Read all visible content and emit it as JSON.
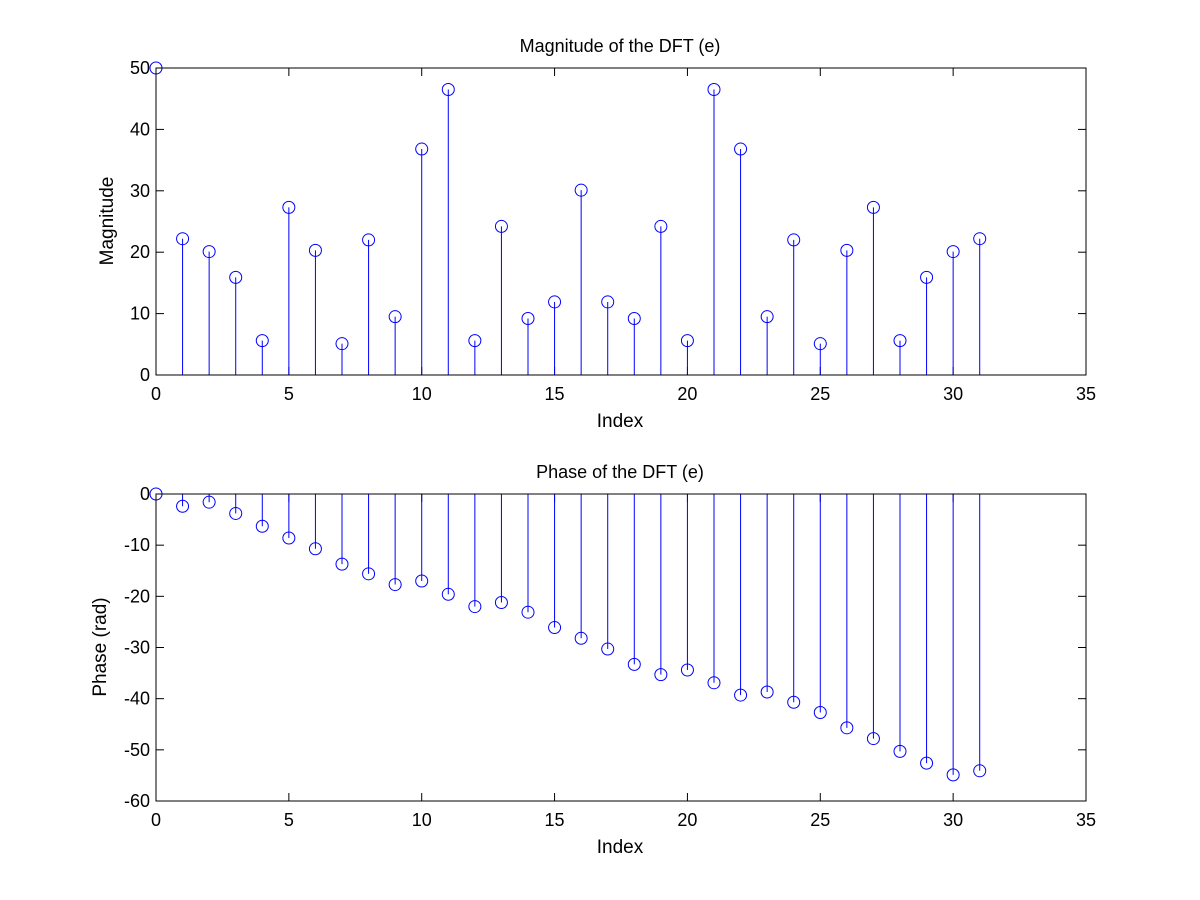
{
  "chart_data": [
    {
      "type": "stem",
      "title": "Magnitude of the DFT (e)",
      "xlabel": "Index",
      "ylabel": "Magnitude",
      "xlim": [
        0,
        35
      ],
      "ylim": [
        0,
        50
      ],
      "xticks": [
        0,
        5,
        10,
        15,
        20,
        25,
        30,
        35
      ],
      "yticks": [
        0,
        10,
        20,
        30,
        40,
        50
      ],
      "grid": false,
      "color": "#0000ff",
      "x": [
        0,
        1,
        2,
        3,
        4,
        5,
        6,
        7,
        8,
        9,
        10,
        11,
        12,
        13,
        14,
        15,
        16,
        17,
        18,
        19,
        20,
        21,
        22,
        23,
        24,
        25,
        26,
        27,
        28,
        29,
        30,
        31
      ],
      "y": [
        50,
        22.2,
        20.1,
        15.9,
        5.6,
        27.3,
        20.3,
        5.1,
        22.0,
        9.5,
        36.8,
        46.5,
        5.6,
        24.2,
        9.2,
        11.9,
        30.1,
        11.9,
        9.2,
        24.2,
        5.6,
        46.5,
        36.8,
        9.5,
        22.0,
        5.1,
        20.3,
        27.3,
        5.6,
        15.9,
        20.1,
        22.2
      ]
    },
    {
      "type": "stem",
      "title": "Phase of the DFT (e)",
      "xlabel": "Index",
      "ylabel": "Phase (rad)",
      "xlim": [
        0,
        35
      ],
      "ylim": [
        -60,
        0
      ],
      "xticks": [
        0,
        5,
        10,
        15,
        20,
        25,
        30,
        35
      ],
      "yticks": [
        -60,
        -50,
        -40,
        -30,
        -20,
        -10,
        0
      ],
      "grid": false,
      "color": "#0000ff",
      "x": [
        0,
        1,
        2,
        3,
        4,
        5,
        6,
        7,
        8,
        9,
        10,
        11,
        12,
        13,
        14,
        15,
        16,
        17,
        18,
        19,
        20,
        21,
        22,
        23,
        24,
        25,
        26,
        27,
        28,
        29,
        30,
        31
      ],
      "y": [
        0,
        -2.4,
        -1.6,
        -3.8,
        -6.3,
        -8.6,
        -10.7,
        -13.7,
        -15.6,
        -17.7,
        -17.0,
        -19.6,
        -22.0,
        -21.2,
        -23.1,
        -26.1,
        -28.2,
        -30.3,
        -33.3,
        -35.3,
        -34.4,
        -36.9,
        -39.3,
        -38.7,
        -40.7,
        -42.7,
        -45.7,
        -47.8,
        -50.3,
        -52.6,
        -54.9,
        -54.1
      ]
    }
  ]
}
